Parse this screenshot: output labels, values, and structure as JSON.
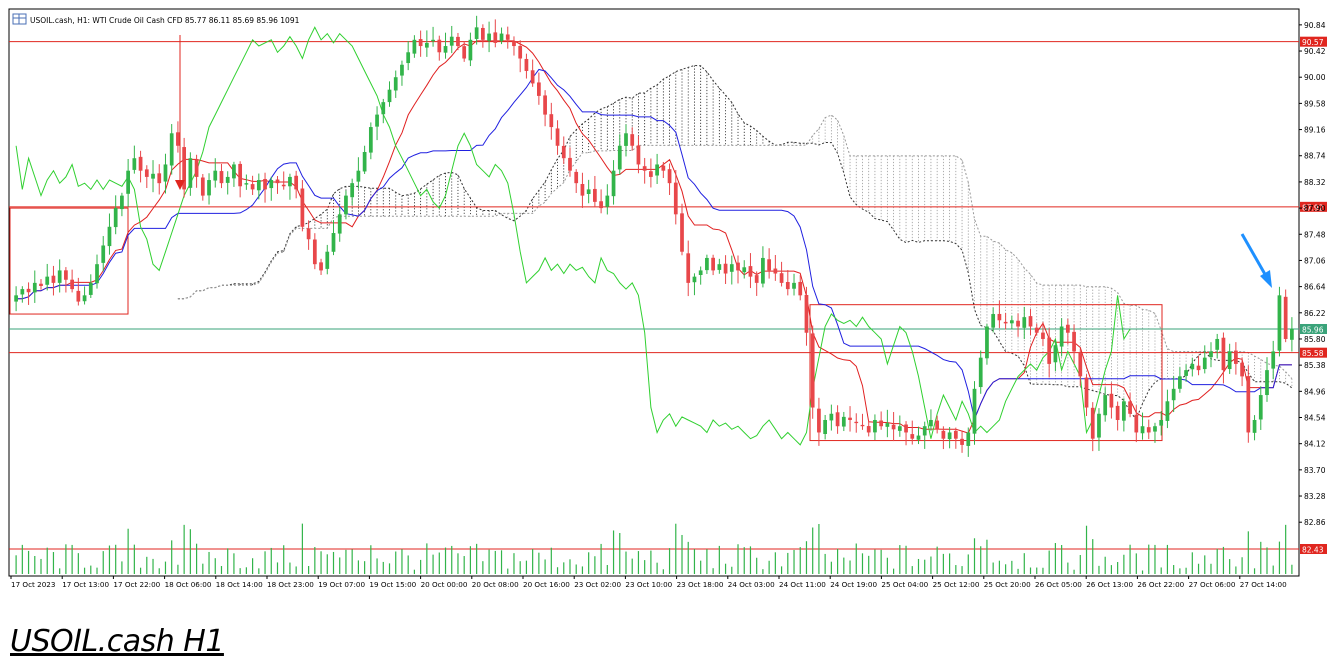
{
  "header": {
    "symbol_line": "USOIL.cash, H1:  WTI Crude Oil Cash CFD   85.77 86.11 85.69 85.96  1091"
  },
  "caption": "USOIL.cash H1",
  "colors": {
    "bull": "#32b44a",
    "bear": "#e8474a",
    "level_line": "#e0261f",
    "price_line": "#3aa37a",
    "tenkan": "#e02020",
    "kijun": "#2020e0",
    "chikou": "#30d030",
    "cloud": "#000000",
    "volume": "#32b44a",
    "arrow": "#1e90ff"
  },
  "chart_data": {
    "type": "candlestick",
    "title": "USOIL.cash, H1",
    "ylim": [
      82.43,
      90.95
    ],
    "y_ticks": [
      90.84,
      90.42,
      90.0,
      89.58,
      89.16,
      88.74,
      88.32,
      87.9,
      87.48,
      87.06,
      86.64,
      86.22,
      85.8,
      85.38,
      84.96,
      84.54,
      84.12,
      83.7,
      83.28,
      82.86
    ],
    "x_ticks": [
      "17 Oct 2023",
      "17 Oct 13:00",
      "17 Oct 22:00",
      "18 Oct 06:00",
      "18 Oct 14:00",
      "18 Oct 23:00",
      "19 Oct 07:00",
      "19 Oct 15:00",
      "20 Oct 00:00",
      "20 Oct 08:00",
      "20 Oct 16:00",
      "23 Oct 02:00",
      "23 Oct 10:00",
      "23 Oct 18:00",
      "24 Oct 03:00",
      "24 Oct 11:00",
      "24 Oct 19:00",
      "25 Oct 04:00",
      "25 Oct 12:00",
      "25 Oct 20:00",
      "26 Oct 05:00",
      "26 Oct 13:00",
      "26 Oct 22:00",
      "27 Oct 06:00",
      "27 Oct 14:00"
    ],
    "levels": [
      {
        "price": 90.57,
        "label": "90.57"
      },
      {
        "price": 87.92,
        "label": "87.92"
      },
      {
        "price": 85.58,
        "label": "85.58"
      },
      {
        "price": 82.43,
        "label": "82.43"
      }
    ],
    "current_price": {
      "price": 85.96,
      "label": "85.96"
    },
    "closes": [
      86.5,
      86.6,
      86.55,
      86.7,
      86.65,
      86.8,
      86.7,
      86.9,
      86.75,
      86.6,
      86.4,
      86.5,
      86.7,
      87.0,
      87.3,
      87.6,
      87.9,
      88.1,
      88.5,
      88.7,
      88.5,
      88.4,
      88.45,
      88.3,
      88.6,
      89.1,
      88.9,
      88.2,
      88.7,
      88.4,
      88.1,
      88.35,
      88.5,
      88.3,
      88.4,
      88.6,
      88.25,
      88.3,
      88.2,
      88.35,
      88.2,
      88.35,
      88.3,
      88.25,
      88.4,
      88.2,
      87.6,
      87.4,
      87.0,
      86.9,
      87.2,
      87.5,
      87.8,
      88.1,
      88.3,
      88.5,
      88.8,
      89.2,
      89.4,
      89.6,
      89.8,
      90.0,
      90.2,
      90.4,
      90.6,
      90.5,
      90.55,
      90.6,
      90.4,
      90.5,
      90.65,
      90.5,
      90.3,
      90.6,
      90.8,
      90.6,
      90.7,
      90.55,
      90.7,
      90.6,
      90.5,
      90.3,
      90.1,
      89.9,
      89.7,
      89.4,
      89.2,
      88.9,
      88.7,
      88.5,
      88.3,
      88.1,
      88.2,
      88.0,
      87.9,
      88.1,
      88.5,
      88.9,
      89.1,
      88.9,
      88.6,
      88.5,
      88.4,
      88.6,
      88.5,
      88.3,
      87.8,
      87.2,
      86.7,
      86.8,
      86.9,
      87.1,
      86.9,
      87.0,
      86.85,
      87.0,
      86.9,
      86.95,
      86.8,
      86.7,
      87.1,
      86.9,
      86.85,
      86.7,
      86.6,
      86.7,
      86.5,
      85.9,
      84.7,
      84.3,
      84.5,
      84.6,
      84.4,
      84.55,
      84.5,
      84.45,
      84.4,
      84.3,
      84.5,
      84.4,
      84.45,
      84.35,
      84.4,
      84.3,
      84.2,
      84.25,
      84.4,
      84.5,
      84.35,
      84.2,
      84.3,
      84.2,
      84.1,
      84.3,
      85.0,
      85.5,
      86.0,
      86.2,
      86.1,
      86.05,
      86.1,
      86.0,
      86.15,
      86.0,
      85.9,
      85.8,
      85.4,
      85.7,
      86.0,
      85.9,
      85.6,
      85.2,
      84.7,
      84.2,
      84.6,
      84.9,
      84.7,
      84.5,
      84.8,
      84.6,
      84.3,
      84.4,
      84.3,
      84.4,
      84.5,
      84.8,
      85.0,
      85.2,
      85.3,
      85.4,
      85.3,
      85.5,
      85.6,
      85.8,
      85.3,
      85.6,
      85.4,
      85.2,
      84.3,
      84.5,
      84.9,
      85.3,
      85.6,
      86.5,
      85.8,
      85.96
    ]
  }
}
